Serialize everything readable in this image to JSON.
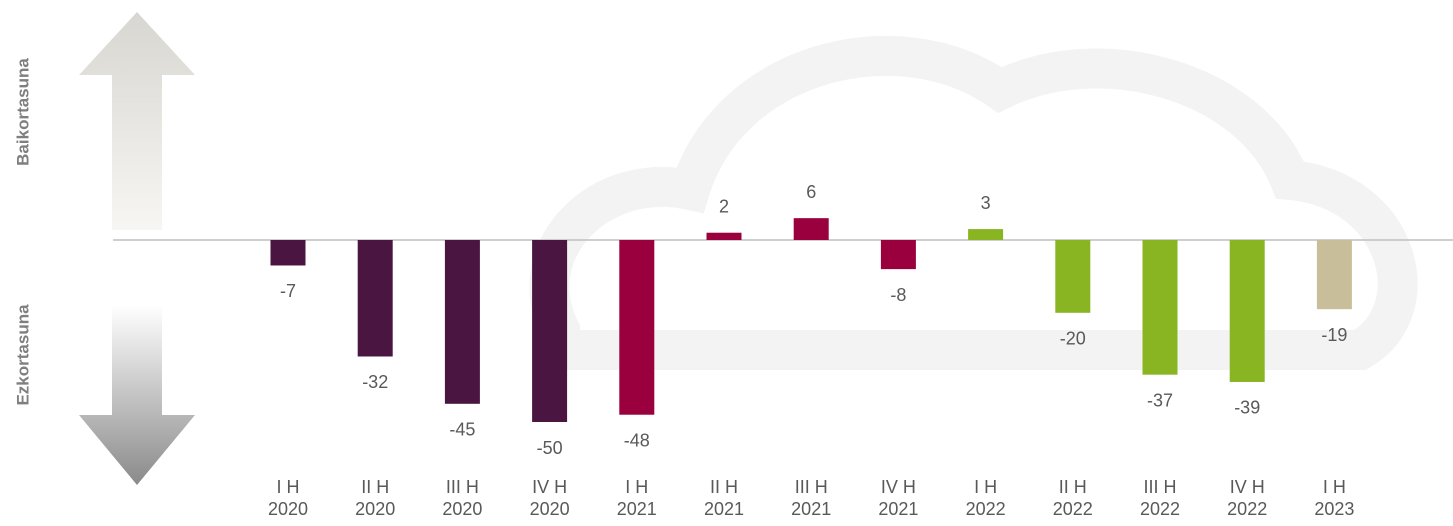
{
  "chart_data": {
    "type": "bar",
    "axis_labels": [
      "Baikortasuna",
      "Ezkortasuna"
    ],
    "categories": [
      [
        "I H",
        "2020"
      ],
      [
        "II H",
        "2020"
      ],
      [
        "III H",
        "2020"
      ],
      [
        "IV H",
        "2020"
      ],
      [
        "I H",
        "2021"
      ],
      [
        "II H",
        "2021"
      ],
      [
        "III H",
        "2021"
      ],
      [
        "IV H",
        "2021"
      ],
      [
        "I H",
        "2022"
      ],
      [
        "II H",
        "2022"
      ],
      [
        "III H",
        "2022"
      ],
      [
        "IV H",
        "2022"
      ],
      [
        "I H",
        "2023"
      ]
    ],
    "values": [
      -7,
      -32,
      -45,
      -50,
      -48,
      2,
      6,
      -8,
      3,
      -20,
      -37,
      -39,
      -19
    ],
    "colors": [
      "#4a1540",
      "#4a1540",
      "#4a1540",
      "#4a1540",
      "#99003d",
      "#99003d",
      "#99003d",
      "#99003d",
      "#8ab523",
      "#8ab523",
      "#8ab523",
      "#8ab523",
      "#c8bf9a"
    ]
  }
}
